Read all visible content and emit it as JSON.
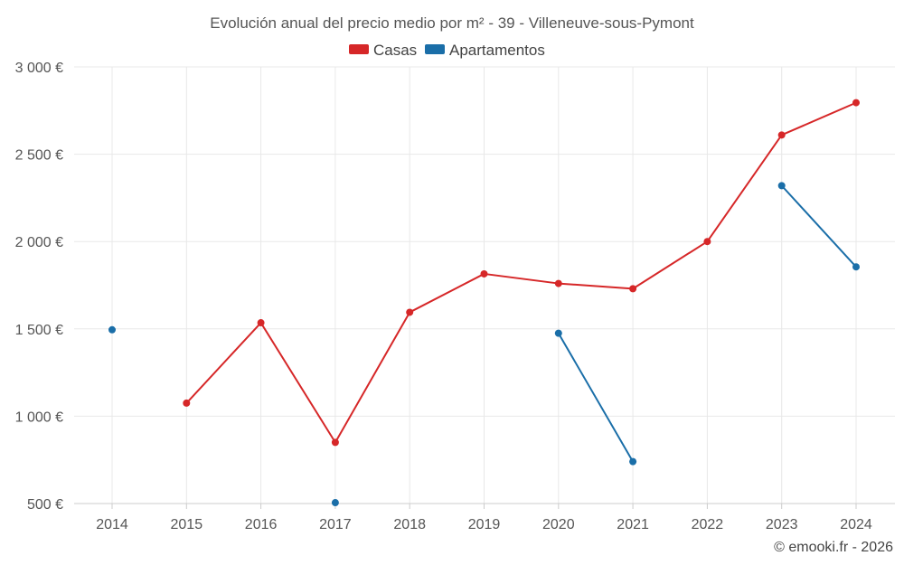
{
  "chart_data": {
    "type": "line",
    "title": "Evolución anual del precio medio por m² - 39 - Villeneuve-sous-Pymont",
    "x": [
      "2014",
      "2015",
      "2016",
      "2017",
      "2018",
      "2019",
      "2020",
      "2021",
      "2022",
      "2023",
      "2024"
    ],
    "y_ticks": [
      500,
      1000,
      1500,
      2000,
      2500,
      3000
    ],
    "y_tick_labels": [
      "500 €",
      "1 000 €",
      "1 500 €",
      "2 000 €",
      "2 500 €",
      "3 000 €"
    ],
    "ylim": [
      500,
      3000
    ],
    "grid": true,
    "legend_position": "top-center",
    "series": [
      {
        "name": "Casas",
        "color": "#d62728",
        "values": [
          null,
          1075,
          1535,
          850,
          1595,
          1815,
          1760,
          1730,
          2000,
          2610,
          2795
        ]
      },
      {
        "name": "Apartamentos",
        "color": "#1a6ea8",
        "values": [
          1495,
          null,
          null,
          505,
          null,
          null,
          1475,
          740,
          null,
          2320,
          1855
        ]
      }
    ],
    "credit": "© emooki.fr - 2026"
  }
}
